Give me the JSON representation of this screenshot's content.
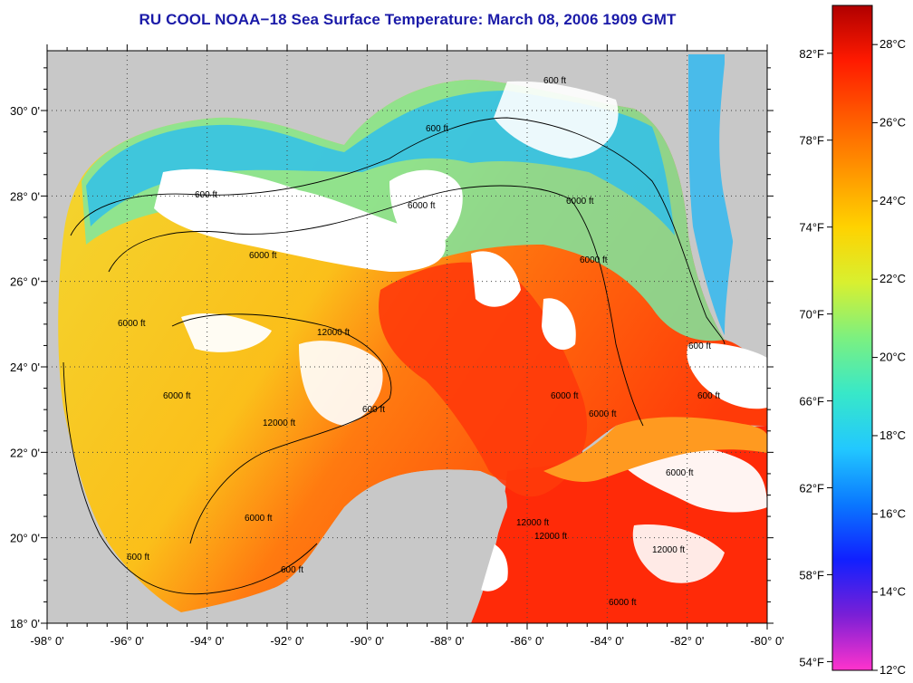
{
  "title": "RU COOL  NOAA−18  Sea Surface Temperature:  March 08, 2006 1909 GMT",
  "map": {
    "lon_labels": [
      "-98° 0'",
      "-96° 0'",
      "-94° 0'",
      "-92° 0'",
      "-90° 0'",
      "-88° 0'",
      "-86° 0'",
      "-84° 0'",
      "-82° 0'",
      "-80° 0'"
    ],
    "lat_labels": [
      "18° 0'",
      "20° 0'",
      "22° 0'",
      "24° 0'",
      "26° 0'",
      "28° 0'",
      "30° 0'"
    ],
    "lon_range": [
      -98,
      -80
    ],
    "lat_range": [
      18,
      31.4
    ],
    "grid": "dotted",
    "contour_labels": [
      "600 ft",
      "6000 ft",
      "12000 ft",
      "600 ft",
      "6000 ft",
      "12000 ft",
      "600 ft",
      "6000 ft",
      "600 ft",
      "6000 ft",
      "12000 ft",
      "600 ft",
      "6000 ft",
      "600 ft",
      "12000 ft",
      "6000 ft",
      "600 ft",
      "6000 ft",
      "6000 ft",
      "600 ft",
      "6000 ft",
      "12000 ft",
      "6000 ft",
      "6000 ft"
    ]
  },
  "colorbar": {
    "celsius_labels": [
      "28°C",
      "26°C",
      "24°C",
      "22°C",
      "20°C",
      "18°C",
      "16°C",
      "14°C",
      "12°C"
    ],
    "fahrenheit_labels": [
      "82°F",
      "78°F",
      "74°F",
      "70°F",
      "66°F",
      "62°F",
      "58°F",
      "54°F"
    ],
    "range_celsius": [
      12,
      29
    ],
    "colors": [
      "#ff33cc",
      "#7a1fd6",
      "#1020ff",
      "#0a78ff",
      "#22c8ff",
      "#38e8c8",
      "#7cf080",
      "#d8f030",
      "#ffd200",
      "#ff9600",
      "#ff5a00",
      "#ff1a00",
      "#b00000"
    ]
  }
}
